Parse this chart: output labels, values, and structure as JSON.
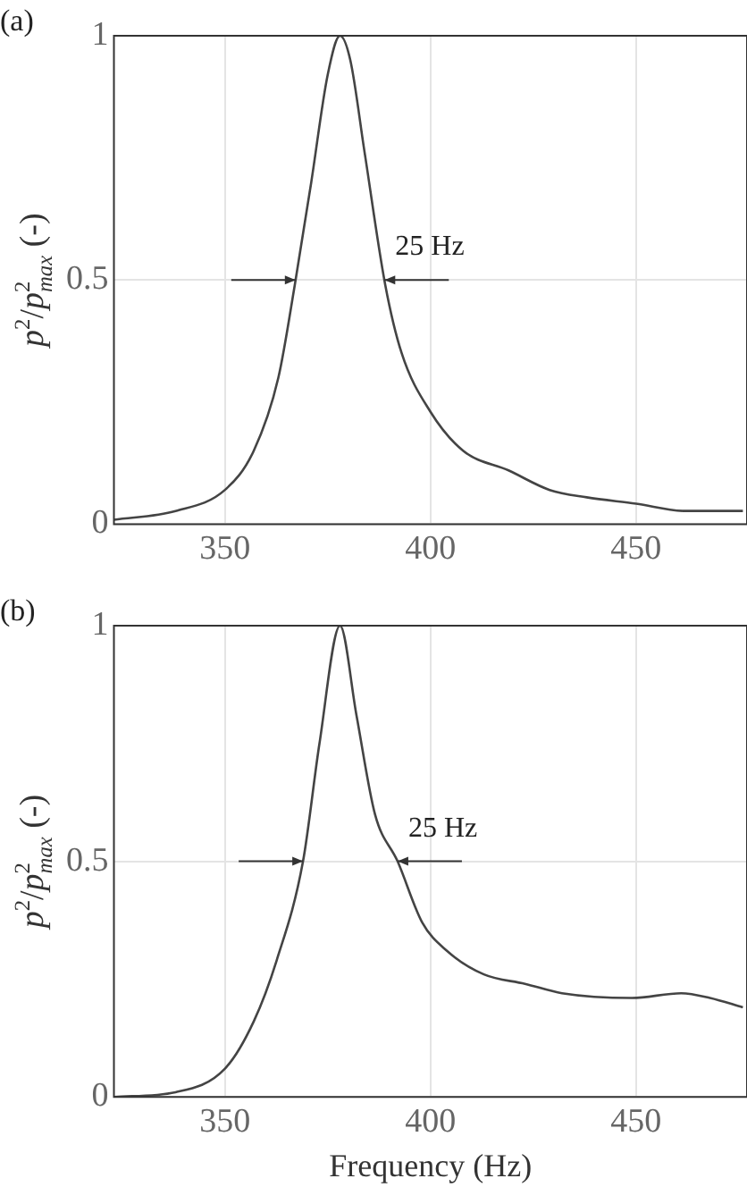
{
  "chart_data": [
    {
      "type": "line",
      "ylabel": "p$^{2}$/p$_{max}$$^{2}$ (-)",
      "annotations": [
        "(a)",
        "25 Hz"
      ],
      "x": [
        323,
        338,
        350,
        357,
        363,
        367,
        371,
        375,
        378,
        380.5,
        384,
        389,
        393,
        400,
        408,
        419,
        429,
        438,
        450,
        462,
        476
      ],
      "series": [
        {
          "color": "#444444",
          "values": [
            0.009,
            0.027,
            0.07,
            0.15,
            0.3,
            0.49,
            0.7,
            0.92,
            1.0,
            0.95,
            0.76,
            0.49,
            0.35,
            0.23,
            0.15,
            0.11,
            0.07,
            0.055,
            0.042,
            0.027,
            0.027
          ]
        }
      ],
      "xlim": [
        323,
        477
      ],
      "xticks": [
        350,
        400,
        450
      ],
      "ylim": [
        0,
        1
      ],
      "yticks": [
        0,
        0.5,
        1
      ],
      "grid": true,
      "legend": false
    },
    {
      "type": "line",
      "xlabel": "Frequency (Hz)",
      "ylabel": "p$^{2}$/p$_{max}$$^{2}$ (-)",
      "annotations": [
        "(b)",
        "25 Hz"
      ],
      "x": [
        323,
        338,
        350,
        357,
        362.6,
        369,
        373,
        378,
        382,
        386.5,
        392,
        398,
        404,
        413,
        423,
        432,
        449,
        461,
        468,
        476
      ],
      "series": [
        {
          "color": "#444444",
          "values": [
            0.0,
            0.01,
            0.06,
            0.16,
            0.29,
            0.5,
            0.75,
            1.0,
            0.81,
            0.6,
            0.5,
            0.37,
            0.31,
            0.26,
            0.24,
            0.22,
            0.21,
            0.22,
            0.21,
            0.19
          ]
        }
      ],
      "xlim": [
        323,
        477
      ],
      "xticks": [
        350,
        400,
        450
      ],
      "ylim": [
        0,
        1
      ],
      "yticks": [
        0,
        0.5,
        1
      ],
      "grid": true,
      "legend": false
    }
  ]
}
